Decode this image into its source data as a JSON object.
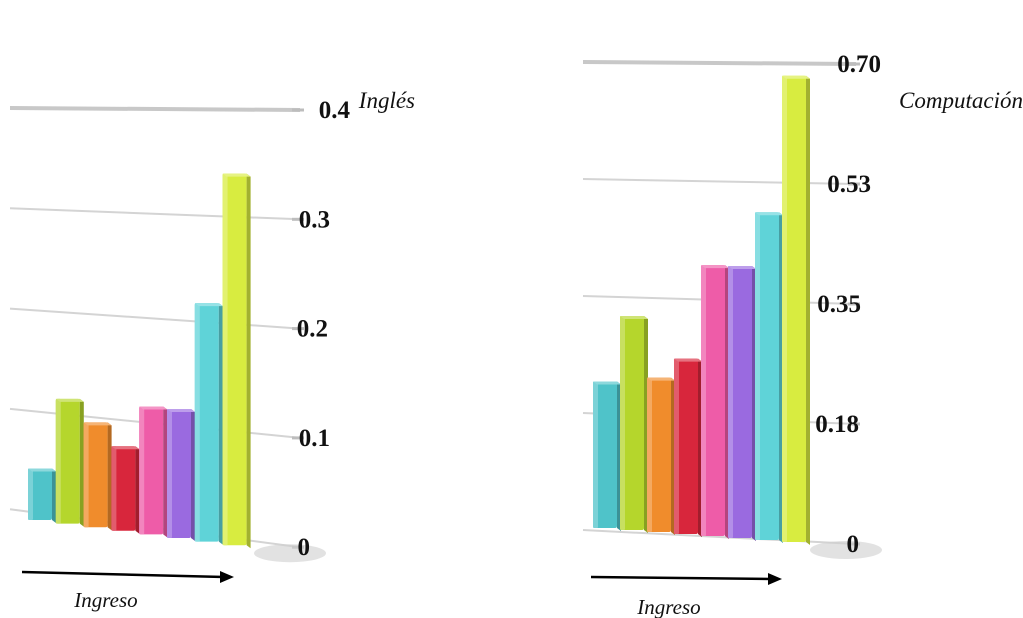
{
  "chart_data": [
    {
      "type": "bar",
      "title": "Inglés",
      "xlabel": "Ingreso",
      "ylabel": "",
      "ylim": [
        0,
        0.4
      ],
      "ticks": [
        "0",
        "0.1",
        "0.2",
        "0.3",
        "0.4"
      ],
      "tick_values": [
        0,
        0.1,
        0.2,
        0.3,
        0.4
      ],
      "series": [
        {
          "values": [
            0.05,
            0.12,
            0.1,
            0.08,
            0.12,
            0.12,
            0.22,
            0.34
          ]
        }
      ],
      "colors": [
        "#4fc3c9",
        "#b5d62c",
        "#f08c2c",
        "#d8263c",
        "#ee5ca8",
        "#9a6ae0",
        "#5fd3d8",
        "#d8ec40"
      ],
      "grid": true,
      "legend": "none"
    },
    {
      "type": "bar",
      "title": "Computación",
      "xlabel": "Ingreso",
      "ylabel": "",
      "ylim": [
        0,
        0.7
      ],
      "ticks": [
        "0",
        "0.18",
        "0.35",
        "0.53",
        "0.70"
      ],
      "tick_values": [
        0,
        0.175,
        0.35,
        0.525,
        0.7
      ],
      "series": [
        {
          "values": [
            0.22,
            0.32,
            0.23,
            0.26,
            0.4,
            0.4,
            0.48,
            0.68
          ]
        }
      ],
      "colors": [
        "#4fc3c9",
        "#b5d62c",
        "#f08c2c",
        "#d8263c",
        "#ee5ca8",
        "#9a6ae0",
        "#5fd3d8",
        "#d8ec40"
      ],
      "grid": true,
      "legend": "none"
    }
  ]
}
